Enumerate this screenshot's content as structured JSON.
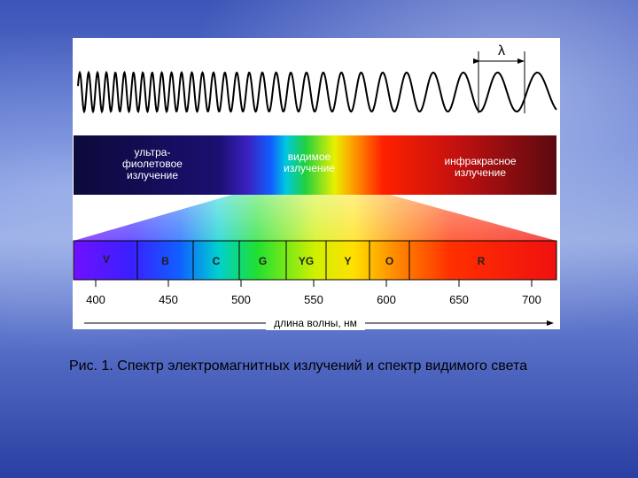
{
  "figure": {
    "lambda": "λ",
    "uv_label": [
      "ультра-",
      "фиолетовое",
      "излучение"
    ],
    "visible_label": [
      "видимое",
      "излучение"
    ],
    "ir_label": [
      "инфракрасное",
      "излучение"
    ],
    "bands": [
      "V",
      "B",
      "C",
      "G",
      "YG",
      "Y",
      "O",
      "R"
    ],
    "ticks": [
      "400",
      "450",
      "500",
      "550",
      "600",
      "650",
      "700"
    ],
    "axis_label": "длина волны, нм"
  },
  "caption": "Рис. 1. Спектр электромагнитных излучений и спектр видимого света"
}
